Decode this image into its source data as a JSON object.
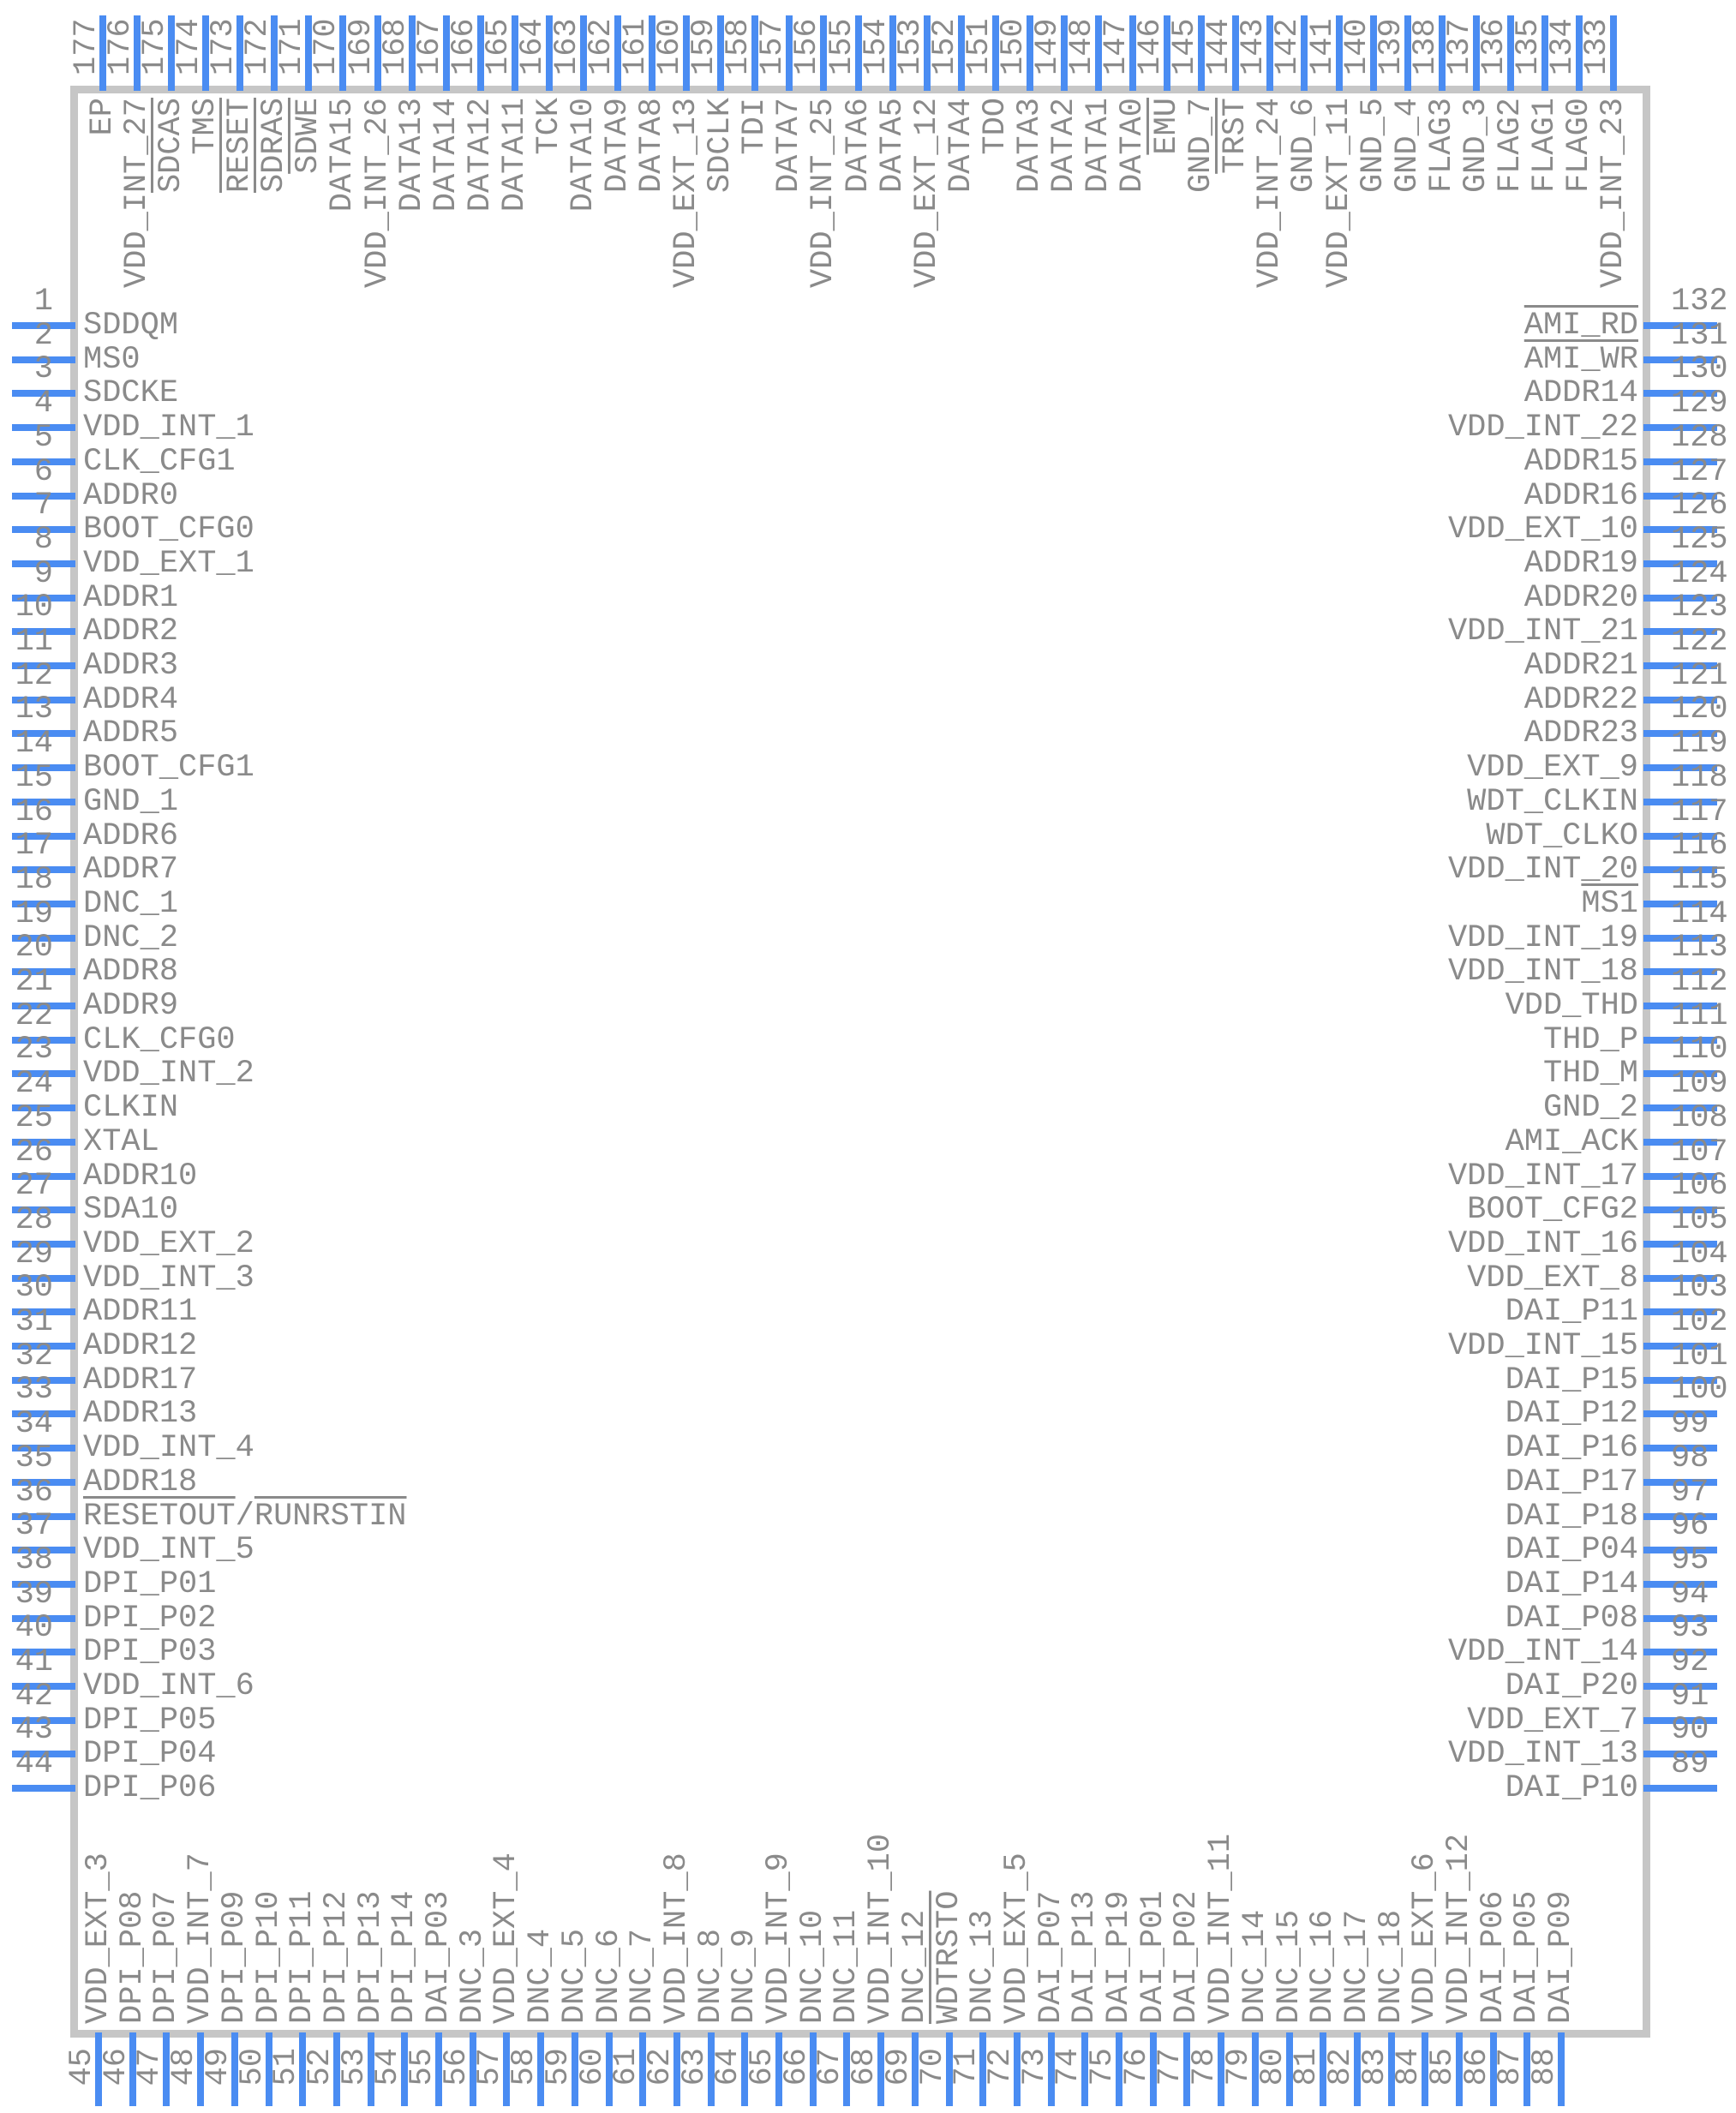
{
  "colors": {
    "pin_line": "#4a8cf2",
    "body_border": "#c6c6c6",
    "text": "#8a8a8a",
    "background": "#ffffff"
  },
  "component": {
    "sides": {
      "top": {
        "pins": [
          {
            "number": 177,
            "label": "EP"
          },
          {
            "number": 176,
            "label": "VDD_INT_27"
          },
          {
            "number": 175,
            "label": "SDCAS",
            "overline": true
          },
          {
            "number": 174,
            "label": "TMS"
          },
          {
            "number": 173,
            "label": "RESET",
            "overline": true
          },
          {
            "number": 172,
            "label": "SDRAS",
            "overline": true
          },
          {
            "number": 171,
            "label": "SDWE",
            "overline": true
          },
          {
            "number": 170,
            "label": "DATA15"
          },
          {
            "number": 169,
            "label": "VDD_INT_26"
          },
          {
            "number": 168,
            "label": "DATA13"
          },
          {
            "number": 167,
            "label": "DATA14"
          },
          {
            "number": 166,
            "label": "DATA12"
          },
          {
            "number": 165,
            "label": "DATA11"
          },
          {
            "number": 164,
            "label": "TCK"
          },
          {
            "number": 163,
            "label": "DATA10"
          },
          {
            "number": 162,
            "label": "DATA9"
          },
          {
            "number": 161,
            "label": "DATA8"
          },
          {
            "number": 160,
            "label": "VDD_EXT_13"
          },
          {
            "number": 159,
            "label": "SDCLK"
          },
          {
            "number": 158,
            "label": "TDI"
          },
          {
            "number": 157,
            "label": "DATA7"
          },
          {
            "number": 156,
            "label": "VDD_INT_25"
          },
          {
            "number": 155,
            "label": "DATA6"
          },
          {
            "number": 154,
            "label": "DATA5"
          },
          {
            "number": 153,
            "label": "VDD_EXT_12"
          },
          {
            "number": 152,
            "label": "DATA4"
          },
          {
            "number": 151,
            "label": "TDO"
          },
          {
            "number": 150,
            "label": "DATA3"
          },
          {
            "number": 149,
            "label": "DATA2"
          },
          {
            "number": 148,
            "label": "DATA1"
          },
          {
            "number": 147,
            "label": "DATA0"
          },
          {
            "number": 146,
            "label": "EMU",
            "overline": true
          },
          {
            "number": 145,
            "label": "GND_7"
          },
          {
            "number": 144,
            "label": "TRST",
            "overline": true
          },
          {
            "number": 143,
            "label": "VDD_INT_24"
          },
          {
            "number": 142,
            "label": "GND_6"
          },
          {
            "number": 141,
            "label": "VDD_EXT_11"
          },
          {
            "number": 140,
            "label": "GND_5"
          },
          {
            "number": 139,
            "label": "GND_4"
          },
          {
            "number": 138,
            "label": "FLAG3"
          },
          {
            "number": 137,
            "label": "GND_3"
          },
          {
            "number": 136,
            "label": "FLAG2"
          },
          {
            "number": 135,
            "label": "FLAG1"
          },
          {
            "number": 134,
            "label": "FLAG0"
          },
          {
            "number": 133,
            "label": "VDD_INT_23"
          }
        ]
      },
      "left": {
        "pins": [
          {
            "number": 1,
            "label": "SDDQM"
          },
          {
            "number": 2,
            "label": "MS0"
          },
          {
            "number": 3,
            "label": "SDCKE"
          },
          {
            "number": 4,
            "label": "VDD_INT_1"
          },
          {
            "number": 5,
            "label": "CLK_CFG1"
          },
          {
            "number": 6,
            "label": "ADDR0"
          },
          {
            "number": 7,
            "label": "BOOT_CFG0"
          },
          {
            "number": 8,
            "label": "VDD_EXT_1"
          },
          {
            "number": 9,
            "label": "ADDR1"
          },
          {
            "number": 10,
            "label": "ADDR2"
          },
          {
            "number": 11,
            "label": "ADDR3"
          },
          {
            "number": 12,
            "label": "ADDR4"
          },
          {
            "number": 13,
            "label": "ADDR5"
          },
          {
            "number": 14,
            "label": "BOOT_CFG1"
          },
          {
            "number": 15,
            "label": "GND_1"
          },
          {
            "number": 16,
            "label": "ADDR6"
          },
          {
            "number": 17,
            "label": "ADDR7"
          },
          {
            "number": 18,
            "label": "DNC_1"
          },
          {
            "number": 19,
            "label": "DNC_2"
          },
          {
            "number": 20,
            "label": "ADDR8"
          },
          {
            "number": 21,
            "label": "ADDR9"
          },
          {
            "number": 22,
            "label": "CLK_CFG0"
          },
          {
            "number": 23,
            "label": "VDD_INT_2"
          },
          {
            "number": 24,
            "label": "CLKIN"
          },
          {
            "number": 25,
            "label": "XTAL"
          },
          {
            "number": 26,
            "label": "ADDR10"
          },
          {
            "number": 27,
            "label": "SDA10"
          },
          {
            "number": 28,
            "label": "VDD_EXT_2"
          },
          {
            "number": 29,
            "label": "VDD_INT_3"
          },
          {
            "number": 30,
            "label": "ADDR11"
          },
          {
            "number": 31,
            "label": "ADDR12"
          },
          {
            "number": 32,
            "label": "ADDR17"
          },
          {
            "number": 33,
            "label": "ADDR13"
          },
          {
            "number": 34,
            "label": "VDD_INT_4"
          },
          {
            "number": 35,
            "label": "ADDR18"
          },
          {
            "number": 36,
            "label": "RESETOUT/RUNRSTIN",
            "segments": [
              {
                "text": "RESETOUT",
                "overline": true
              },
              {
                "text": "/",
                "overline": false
              },
              {
                "text": "RUNRSTIN",
                "overline": true
              }
            ]
          },
          {
            "number": 37,
            "label": "VDD_INT_5"
          },
          {
            "number": 38,
            "label": "DPI_P01"
          },
          {
            "number": 39,
            "label": "DPI_P02"
          },
          {
            "number": 40,
            "label": "DPI_P03"
          },
          {
            "number": 41,
            "label": "VDD_INT_6"
          },
          {
            "number": 42,
            "label": "DPI_P05"
          },
          {
            "number": 43,
            "label": "DPI_P04"
          },
          {
            "number": 44,
            "label": "DPI_P06"
          }
        ]
      },
      "right": {
        "pins": [
          {
            "number": 132,
            "label": "AMI_RD",
            "overline": true
          },
          {
            "number": 131,
            "label": "AMI_WR",
            "overline": true
          },
          {
            "number": 130,
            "label": "ADDR14"
          },
          {
            "number": 129,
            "label": "VDD_INT_22"
          },
          {
            "number": 128,
            "label": "ADDR15"
          },
          {
            "number": 127,
            "label": "ADDR16"
          },
          {
            "number": 126,
            "label": "VDD_EXT_10"
          },
          {
            "number": 125,
            "label": "ADDR19"
          },
          {
            "number": 124,
            "label": "ADDR20"
          },
          {
            "number": 123,
            "label": "VDD_INT_21"
          },
          {
            "number": 122,
            "label": "ADDR21"
          },
          {
            "number": 121,
            "label": "ADDR22"
          },
          {
            "number": 120,
            "label": "ADDR23"
          },
          {
            "number": 119,
            "label": "VDD_EXT_9"
          },
          {
            "number": 118,
            "label": "WDT_CLKIN"
          },
          {
            "number": 117,
            "label": "WDT_CLKO"
          },
          {
            "number": 116,
            "label": "VDD_INT_20"
          },
          {
            "number": 115,
            "label": "MS1",
            "overline": true
          },
          {
            "number": 114,
            "label": "VDD_INT_19"
          },
          {
            "number": 113,
            "label": "VDD_INT_18"
          },
          {
            "number": 112,
            "label": "VDD_THD"
          },
          {
            "number": 111,
            "label": "THD_P"
          },
          {
            "number": 110,
            "label": "THD_M"
          },
          {
            "number": 109,
            "label": "GND_2"
          },
          {
            "number": 108,
            "label": "AMI_ACK"
          },
          {
            "number": 107,
            "label": "VDD_INT_17"
          },
          {
            "number": 106,
            "label": "BOOT_CFG2"
          },
          {
            "number": 105,
            "label": "VDD_INT_16"
          },
          {
            "number": 104,
            "label": "VDD_EXT_8"
          },
          {
            "number": 103,
            "label": "DAI_P11"
          },
          {
            "number": 102,
            "label": "VDD_INT_15"
          },
          {
            "number": 101,
            "label": "DAI_P15"
          },
          {
            "number": 100,
            "label": "DAI_P12"
          },
          {
            "number": 99,
            "label": "DAI_P16"
          },
          {
            "number": 98,
            "label": "DAI_P17"
          },
          {
            "number": 97,
            "label": "DAI_P18"
          },
          {
            "number": 96,
            "label": "DAI_P04"
          },
          {
            "number": 95,
            "label": "DAI_P14"
          },
          {
            "number": 94,
            "label": "DAI_P08"
          },
          {
            "number": 93,
            "label": "VDD_INT_14"
          },
          {
            "number": 92,
            "label": "DAI_P20"
          },
          {
            "number": 91,
            "label": "VDD_EXT_7"
          },
          {
            "number": 90,
            "label": "VDD_INT_13"
          },
          {
            "number": 89,
            "label": "DAI_P10"
          }
        ]
      },
      "bottom": {
        "pins": [
          {
            "number": 45,
            "label": "VDD_EXT_3"
          },
          {
            "number": 46,
            "label": "DPI_P08"
          },
          {
            "number": 47,
            "label": "DPI_P07"
          },
          {
            "number": 48,
            "label": "VDD_INT_7"
          },
          {
            "number": 49,
            "label": "DPI_P09"
          },
          {
            "number": 50,
            "label": "DPI_P10"
          },
          {
            "number": 51,
            "label": "DPI_P11"
          },
          {
            "number": 52,
            "label": "DPI_P12"
          },
          {
            "number": 53,
            "label": "DPI_P13"
          },
          {
            "number": 54,
            "label": "DPI_P14"
          },
          {
            "number": 55,
            "label": "DAI_P03"
          },
          {
            "number": 56,
            "label": "DNC_3"
          },
          {
            "number": 57,
            "label": "VDD_EXT_4"
          },
          {
            "number": 58,
            "label": "DNC_4"
          },
          {
            "number": 59,
            "label": "DNC_5"
          },
          {
            "number": 60,
            "label": "DNC_6"
          },
          {
            "number": 61,
            "label": "DNC_7"
          },
          {
            "number": 62,
            "label": "VDD_INT_8"
          },
          {
            "number": 63,
            "label": "DNC_8"
          },
          {
            "number": 64,
            "label": "DNC_9"
          },
          {
            "number": 65,
            "label": "VDD_INT_9"
          },
          {
            "number": 66,
            "label": "DNC_10"
          },
          {
            "number": 67,
            "label": "DNC_11"
          },
          {
            "number": 68,
            "label": "VDD_INT_10"
          },
          {
            "number": 69,
            "label": "DNC_12"
          },
          {
            "number": 70,
            "label": "WDTRSTO",
            "overline": true
          },
          {
            "number": 71,
            "label": "DNC_13"
          },
          {
            "number": 72,
            "label": "VDD_EXT_5"
          },
          {
            "number": 73,
            "label": "DAI_P07"
          },
          {
            "number": 74,
            "label": "DAI_P13"
          },
          {
            "number": 75,
            "label": "DAI_P19"
          },
          {
            "number": 76,
            "label": "DAI_P01"
          },
          {
            "number": 77,
            "label": "DAI_P02"
          },
          {
            "number": 78,
            "label": "VDD_INT_11"
          },
          {
            "number": 79,
            "label": "DNC_14"
          },
          {
            "number": 80,
            "label": "DNC_15"
          },
          {
            "number": 81,
            "label": "DNC_16"
          },
          {
            "number": 82,
            "label": "DNC_17"
          },
          {
            "number": 83,
            "label": "DNC_18"
          },
          {
            "number": 84,
            "label": "VDD_EXT_6"
          },
          {
            "number": 85,
            "label": "VDD_INT_12"
          },
          {
            "number": 86,
            "label": "DAI_P06"
          },
          {
            "number": 87,
            "label": "DAI_P05"
          },
          {
            "number": 88,
            "label": "DAI_P09"
          }
        ]
      }
    }
  }
}
